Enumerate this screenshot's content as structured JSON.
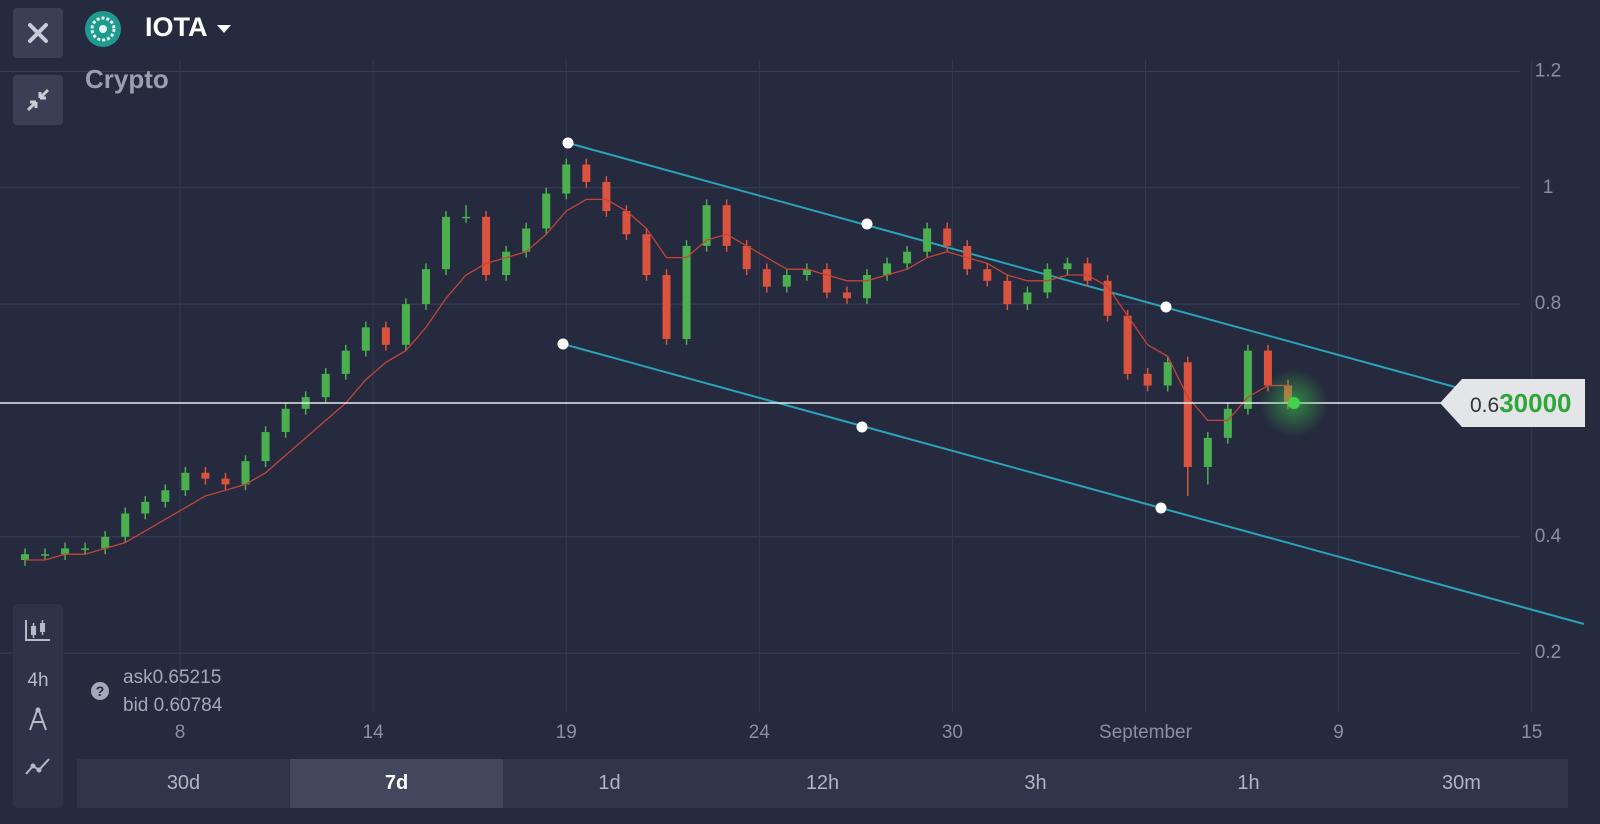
{
  "header": {
    "instrument": "IOTA",
    "category": "Crypto"
  },
  "quote": {
    "ask_label": "ask",
    "ask": 0.65215,
    "bid_label": "bid",
    "bid": 0.60784
  },
  "sidebar": {
    "timeframe": "4h"
  },
  "periods": [
    "30d",
    "7d",
    "1d",
    "12h",
    "3h",
    "1h",
    "30m"
  ],
  "selected_period": "7d",
  "chart_data": {
    "type": "candlestick",
    "open": [
      0.36,
      0.37,
      0.37,
      0.38,
      0.38,
      0.4,
      0.44,
      0.46,
      0.48,
      0.51,
      0.5,
      0.49,
      0.53,
      0.58,
      0.62,
      0.64,
      0.68,
      0.72,
      0.76,
      0.73,
      0.8,
      0.86,
      0.95,
      0.95,
      0.85,
      0.89,
      0.93,
      0.99,
      1.04,
      1.01,
      0.96,
      0.92,
      0.85,
      0.74,
      0.9,
      0.97,
      0.9,
      0.86,
      0.83,
      0.85,
      0.86,
      0.82,
      0.81,
      0.85,
      0.87,
      0.89,
      0.93,
      0.9,
      0.86,
      0.84,
      0.8,
      0.82,
      0.86,
      0.87,
      0.84,
      0.78,
      0.68,
      0.66,
      0.7,
      0.52,
      0.57,
      0.62,
      0.72,
      0.66
    ],
    "high": [
      0.38,
      0.38,
      0.39,
      0.39,
      0.41,
      0.45,
      0.47,
      0.49,
      0.52,
      0.52,
      0.51,
      0.54,
      0.59,
      0.63,
      0.65,
      0.69,
      0.73,
      0.77,
      0.77,
      0.81,
      0.87,
      0.96,
      0.97,
      0.96,
      0.9,
      0.94,
      1.0,
      1.05,
      1.05,
      1.02,
      0.97,
      0.93,
      0.86,
      0.91,
      0.98,
      0.98,
      0.91,
      0.87,
      0.86,
      0.87,
      0.87,
      0.83,
      0.86,
      0.88,
      0.9,
      0.94,
      0.94,
      0.91,
      0.87,
      0.85,
      0.83,
      0.87,
      0.88,
      0.88,
      0.85,
      0.79,
      0.69,
      0.71,
      0.71,
      0.58,
      0.63,
      0.73,
      0.73,
      0.67
    ],
    "low": [
      0.35,
      0.36,
      0.36,
      0.37,
      0.37,
      0.39,
      0.43,
      0.45,
      0.47,
      0.49,
      0.48,
      0.48,
      0.52,
      0.57,
      0.61,
      0.63,
      0.67,
      0.71,
      0.72,
      0.72,
      0.79,
      0.85,
      0.94,
      0.84,
      0.84,
      0.88,
      0.92,
      0.98,
      1.0,
      0.95,
      0.91,
      0.84,
      0.73,
      0.73,
      0.89,
      0.89,
      0.85,
      0.82,
      0.82,
      0.84,
      0.81,
      0.8,
      0.8,
      0.84,
      0.86,
      0.88,
      0.89,
      0.85,
      0.83,
      0.79,
      0.79,
      0.81,
      0.85,
      0.83,
      0.77,
      0.67,
      0.65,
      0.65,
      0.47,
      0.49,
      0.56,
      0.61,
      0.65,
      0.62
    ],
    "close": [
      0.37,
      0.37,
      0.38,
      0.38,
      0.4,
      0.44,
      0.46,
      0.48,
      0.51,
      0.5,
      0.49,
      0.53,
      0.58,
      0.62,
      0.64,
      0.68,
      0.72,
      0.76,
      0.73,
      0.8,
      0.86,
      0.95,
      0.95,
      0.85,
      0.89,
      0.93,
      0.99,
      1.04,
      1.01,
      0.96,
      0.92,
      0.85,
      0.74,
      0.9,
      0.97,
      0.9,
      0.86,
      0.83,
      0.85,
      0.86,
      0.82,
      0.81,
      0.85,
      0.87,
      0.89,
      0.93,
      0.9,
      0.86,
      0.84,
      0.8,
      0.82,
      0.86,
      0.87,
      0.84,
      0.78,
      0.68,
      0.66,
      0.7,
      0.52,
      0.57,
      0.62,
      0.72,
      0.66,
      0.63
    ],
    "moving_average": [
      0.36,
      0.36,
      0.37,
      0.37,
      0.38,
      0.39,
      0.41,
      0.43,
      0.45,
      0.47,
      0.48,
      0.49,
      0.51,
      0.54,
      0.57,
      0.6,
      0.63,
      0.67,
      0.7,
      0.72,
      0.76,
      0.81,
      0.85,
      0.87,
      0.88,
      0.89,
      0.92,
      0.96,
      0.98,
      0.98,
      0.96,
      0.93,
      0.88,
      0.88,
      0.91,
      0.92,
      0.9,
      0.88,
      0.86,
      0.86,
      0.85,
      0.84,
      0.84,
      0.85,
      0.86,
      0.88,
      0.89,
      0.88,
      0.87,
      0.85,
      0.84,
      0.84,
      0.85,
      0.85,
      0.83,
      0.78,
      0.73,
      0.71,
      0.64,
      0.6,
      0.6,
      0.64,
      0.66,
      0.66
    ],
    "up_color": "#4caf4f",
    "down_color": "#d9533e",
    "ma_color": "#c2453a",
    "ylim": [
      0.085,
      1.254
    ],
    "yticks": [
      0.2,
      0.4,
      0.8,
      1,
      1.2
    ],
    "xtick_labels": [
      "8",
      "14",
      "19",
      "24",
      "30",
      "September",
      "9",
      "15"
    ],
    "grid": true,
    "current_price": 0.63,
    "current_price_label": {
      "lead": "0.6",
      "tail": "30000"
    }
  }
}
